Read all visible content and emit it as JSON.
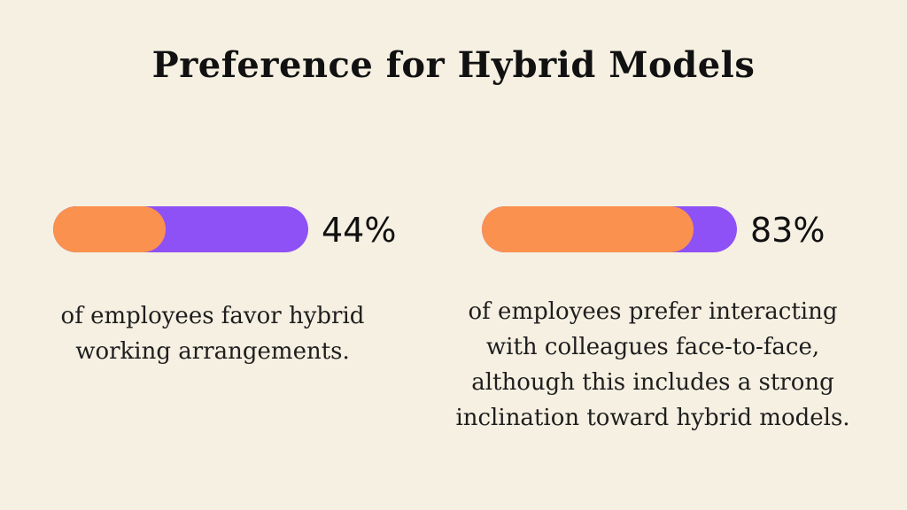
{
  "title": "Preference for Hybrid Models",
  "colors": {
    "background": "#f6f0e2",
    "fill": "#fb914e",
    "track": "#8e51f5",
    "text": "#111111"
  },
  "chart_data": [
    {
      "type": "bar",
      "value": 44,
      "max": 100,
      "value_label": "44%",
      "caption_lines": [
        "of employees favor hybrid",
        "working arrangements."
      ]
    },
    {
      "type": "bar",
      "value": 83,
      "max": 100,
      "value_label": "83%",
      "caption_lines": [
        "of employees prefer interacting",
        "with colleagues face-to-face,",
        "although this includes a strong",
        "inclination toward hybrid models."
      ]
    }
  ]
}
